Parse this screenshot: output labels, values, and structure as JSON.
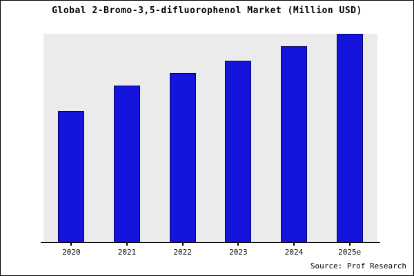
{
  "chart_data": {
    "type": "bar",
    "title": "Global 2-Bromo-3,5-difluorophenol Market (Million USD)",
    "categories": [
      "2020",
      "2021",
      "2022",
      "2023",
      "2024",
      "2025e"
    ],
    "values": [
      63,
      75,
      81,
      87,
      94,
      100
    ],
    "xlabel": "",
    "ylabel": "",
    "ylim": [
      0,
      100
    ],
    "grid": false,
    "legend": "none",
    "bar_color": "#1414dc",
    "bar_border_color": "#000066",
    "plot_background": "#ebebeb"
  },
  "footer": {
    "source_text": "Source: Prof Research"
  }
}
